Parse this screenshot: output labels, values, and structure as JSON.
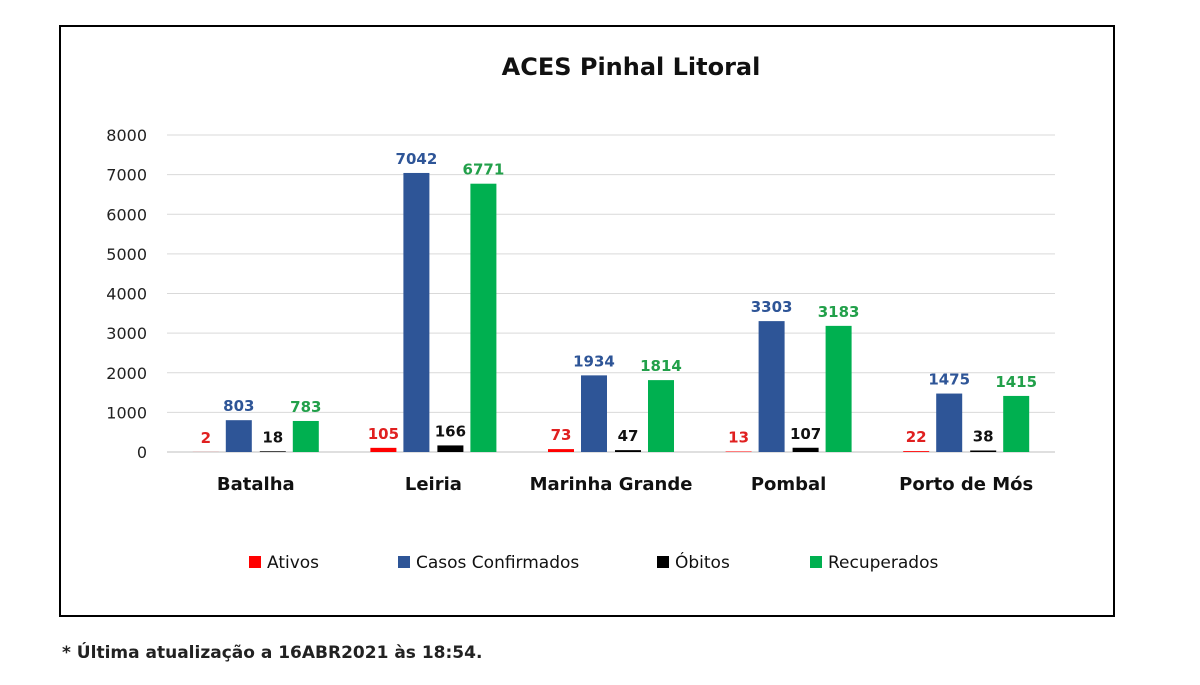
{
  "chart_data": {
    "type": "bar",
    "title": "ACES Pinhal Litoral",
    "xlabel": "",
    "ylabel": "",
    "categories": [
      "Batalha",
      "Leiria",
      "Marinha Grande",
      "Pombal",
      "Porto de Mós"
    ],
    "ylim": [
      0,
      8000
    ],
    "yticks": [
      0,
      1000,
      2000,
      3000,
      4000,
      5000,
      6000,
      7000,
      8000
    ],
    "grid": true,
    "legend_position": "bottom",
    "series": [
      {
        "name": "Ativos",
        "color": "#ff0000",
        "label_color": "#e02020",
        "values": [
          2,
          105,
          73,
          13,
          22
        ]
      },
      {
        "name": "Casos Confirmados",
        "color": "#2e5597",
        "label_color": "#2e5597",
        "values": [
          803,
          7042,
          1934,
          3303,
          1475
        ]
      },
      {
        "name": "Óbitos",
        "color": "#000000",
        "label_color": "#111111",
        "values": [
          18,
          166,
          47,
          107,
          38
        ]
      },
      {
        "name": "Recuperados",
        "color": "#00b050",
        "label_color": "#22a04a",
        "values": [
          783,
          6771,
          1814,
          3183,
          1415
        ]
      }
    ]
  },
  "footnote": "* Última atualização a 16ABR2021 às 18:54."
}
